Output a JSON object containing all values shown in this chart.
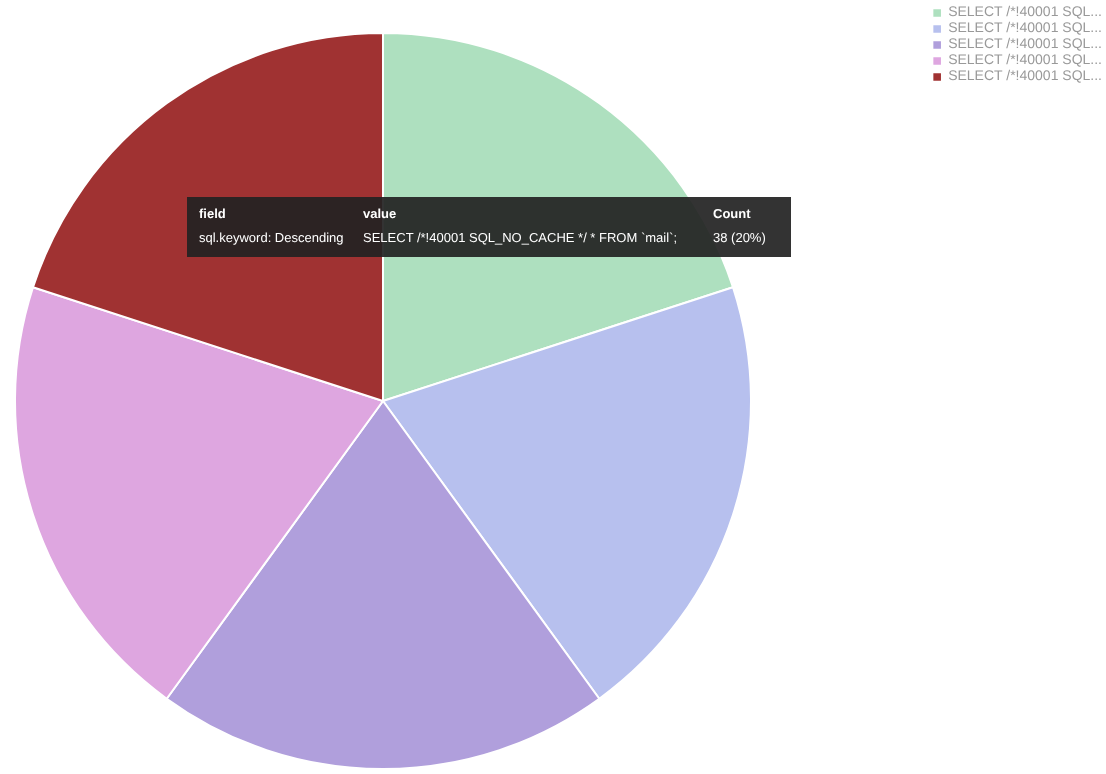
{
  "chart_data": {
    "type": "pie",
    "categories": [
      "SELECT /*!40001 SQL...",
      "SELECT /*!40001 SQL...",
      "SELECT /*!40001 SQL...",
      "SELECT /*!40001 SQL...",
      "SELECT /*!40001 SQL..."
    ],
    "values": [
      20,
      20,
      20,
      20,
      20
    ],
    "colors": [
      "#aee0bf",
      "#b7c0ee",
      "#b09fdc",
      "#dea6e0",
      "#a03232"
    ],
    "legend": "top right",
    "annotations": [
      "field",
      "value",
      "Count",
      "sql.keyword: Descending",
      "SELECT /*!40001 SQL_NO_CACHE */ * FROM `mail`;",
      "38 (20%)"
    ]
  }
}
